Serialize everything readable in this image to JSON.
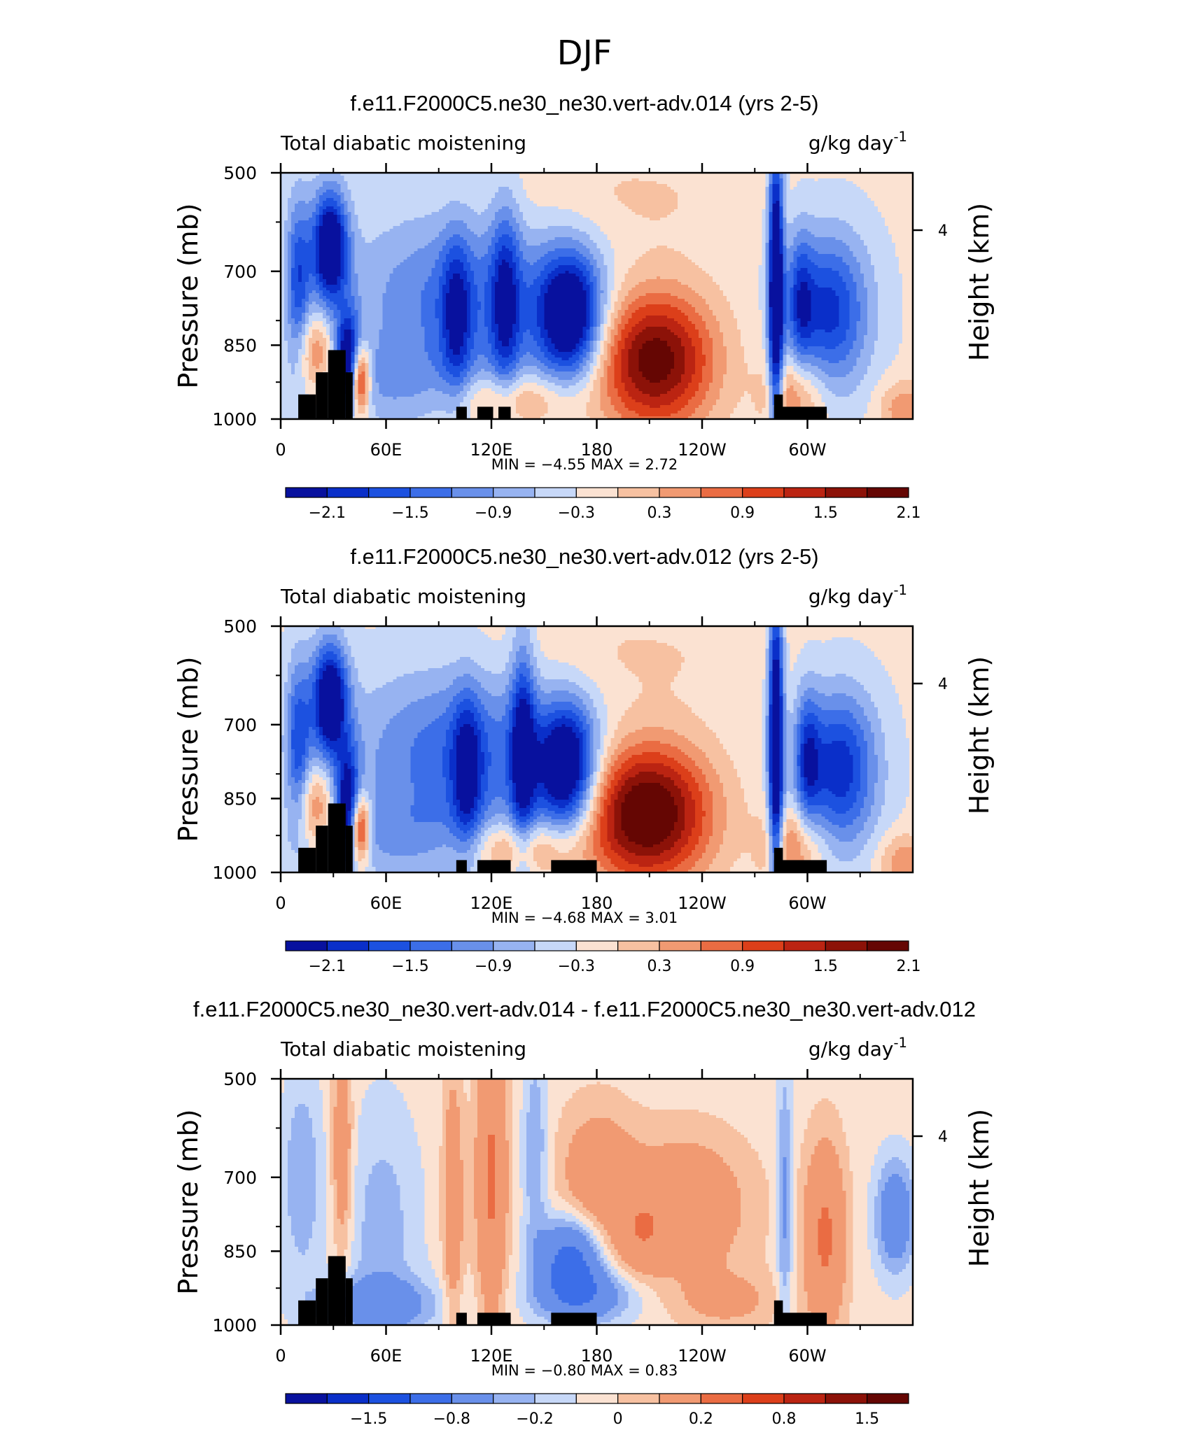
{
  "figure_title": "DJF",
  "chart_data": [
    {
      "type": "heatmap",
      "title": "f.e11.F2000C5.ne30_ne30.vert-adv.014 (yrs 2-5)",
      "left_subtitle": "Total diabatic moistening",
      "units": "g/kg day",
      "units_exponent": "-1",
      "ylabel": "Pressure (mb)",
      "right_ylabel": "Height (km)",
      "right_tick": "4",
      "yticks": [
        "500",
        "700",
        "850",
        "1000"
      ],
      "xticks": [
        "0",
        "60E",
        "120E",
        "180",
        "120W",
        "60W"
      ],
      "min_max": "MIN = −4.55 MAX = 2.72",
      "colorbar_labels": [
        "−2.1",
        "−1.5",
        "−0.9",
        "−0.3",
        "0.3",
        "0.9",
        "1.5",
        "2.1"
      ],
      "colorbar_colors": [
        "#08119e",
        "#0a2fc9",
        "#1c51e0",
        "#3c6ee8",
        "#6990ea",
        "#97b3f1",
        "#c7d8f8",
        "#fbe2d2",
        "#f7c1a1",
        "#f19a72",
        "#ea6c43",
        "#dc3f1a",
        "#bb2412",
        "#8c1208",
        "#650603"
      ],
      "field": {
        "xrange": [
          0,
          360
        ],
        "prange": [
          500,
          1000
        ],
        "vmin": -4.55,
        "vmax": 2.72,
        "blobs": [
          {
            "lon": 28,
            "p": 650,
            "slon": 7,
            "sp": 80,
            "amp": -2.6
          },
          {
            "lon": 10,
            "p": 720,
            "slon": 5,
            "sp": 120,
            "amp": -1.4
          },
          {
            "lon": 20,
            "p": 870,
            "slon": 8,
            "sp": 60,
            "amp": 1.1
          },
          {
            "lon": 38,
            "p": 880,
            "slon": 5,
            "sp": 70,
            "amp": -2.2
          },
          {
            "lon": 45,
            "p": 920,
            "slon": 4,
            "sp": 50,
            "amp": 2.3
          },
          {
            "lon": 105,
            "p": 760,
            "slon": 45,
            "sp": 130,
            "amp": -1.1
          },
          {
            "lon": 100,
            "p": 790,
            "slon": 6,
            "sp": 110,
            "amp": -1.2
          },
          {
            "lon": 128,
            "p": 760,
            "slon": 6,
            "sp": 140,
            "amp": -1.3
          },
          {
            "lon": 165,
            "p": 790,
            "slon": 13,
            "sp": 90,
            "amp": -2.5
          },
          {
            "lon": 130,
            "p": 960,
            "slon": 25,
            "sp": 40,
            "amp": 0.9
          },
          {
            "lon": 60,
            "p": 930,
            "slon": 40,
            "sp": 60,
            "amp": -0.5
          },
          {
            "lon": 213,
            "p": 880,
            "slon": 24,
            "sp": 100,
            "amp": 2.3
          },
          {
            "lon": 282,
            "p": 740,
            "slon": 3,
            "sp": 220,
            "amp": -2.8
          },
          {
            "lon": 312,
            "p": 780,
            "slon": 16,
            "sp": 110,
            "amp": -1.7
          },
          {
            "lon": 296,
            "p": 760,
            "slon": 5,
            "sp": 100,
            "amp": -1.0
          },
          {
            "lon": 292,
            "p": 950,
            "slon": 12,
            "sp": 60,
            "amp": 1.0
          },
          {
            "lon": 355,
            "p": 980,
            "slon": 10,
            "sp": 40,
            "amp": 0.8
          },
          {
            "lon": 190,
            "p": 550,
            "slon": 60,
            "sp": 80,
            "amp": 0.3
          }
        ]
      },
      "topography": [
        {
          "lon0": 10,
          "lon1": 20,
          "p": 950
        },
        {
          "lon0": 20,
          "lon1": 27,
          "p": 905
        },
        {
          "lon0": 27,
          "lon1": 37,
          "p": 860
        },
        {
          "lon0": 37,
          "lon1": 41,
          "p": 905
        },
        {
          "lon0": 100,
          "lon1": 106,
          "p": 975
        },
        {
          "lon0": 112,
          "lon1": 121,
          "p": 975
        },
        {
          "lon0": 124,
          "lon1": 131,
          "p": 975
        },
        {
          "lon0": 281,
          "lon1": 286,
          "p": 950
        },
        {
          "lon0": 281,
          "lon1": 311,
          "p": 975
        }
      ]
    },
    {
      "type": "heatmap",
      "title": "f.e11.F2000C5.ne30_ne30.vert-adv.012 (yrs 2-5)",
      "left_subtitle": "Total diabatic moistening",
      "units": "g/kg day",
      "units_exponent": "-1",
      "ylabel": "Pressure (mb)",
      "right_ylabel": "Height (km)",
      "right_tick": "4",
      "yticks": [
        "500",
        "700",
        "850",
        "1000"
      ],
      "xticks": [
        "0",
        "60E",
        "120E",
        "180",
        "120W",
        "60W"
      ],
      "min_max": "MIN = −4.68 MAX = 3.01",
      "colorbar_labels": [
        "−2.1",
        "−1.5",
        "−0.9",
        "−0.3",
        "0.3",
        "0.9",
        "1.5",
        "2.1"
      ],
      "colorbar_colors": [
        "#08119e",
        "#0a2fc9",
        "#1c51e0",
        "#3c6ee8",
        "#6990ea",
        "#97b3f1",
        "#c7d8f8",
        "#fbe2d2",
        "#f7c1a1",
        "#f19a72",
        "#ea6c43",
        "#dc3f1a",
        "#bb2412",
        "#8c1208",
        "#650603"
      ],
      "field": {
        "xrange": [
          0,
          360
        ],
        "prange": [
          500,
          1000
        ],
        "vmin": -4.68,
        "vmax": 3.01,
        "blobs": [
          {
            "lon": 28,
            "p": 650,
            "slon": 7,
            "sp": 80,
            "amp": -2.6
          },
          {
            "lon": 10,
            "p": 740,
            "slon": 5,
            "sp": 120,
            "amp": -1.4
          },
          {
            "lon": 20,
            "p": 870,
            "slon": 8,
            "sp": 60,
            "amp": 1.1
          },
          {
            "lon": 38,
            "p": 860,
            "slon": 5,
            "sp": 80,
            "amp": -2.0
          },
          {
            "lon": 45,
            "p": 910,
            "slon": 4,
            "sp": 50,
            "amp": 2.3
          },
          {
            "lon": 105,
            "p": 760,
            "slon": 45,
            "sp": 130,
            "amp": -1.2
          },
          {
            "lon": 106,
            "p": 800,
            "slon": 6,
            "sp": 110,
            "amp": -1.3
          },
          {
            "lon": 138,
            "p": 750,
            "slon": 5,
            "sp": 160,
            "amp": -1.6
          },
          {
            "lon": 163,
            "p": 790,
            "slon": 12,
            "sp": 90,
            "amp": -2.5
          },
          {
            "lon": 135,
            "p": 950,
            "slon": 22,
            "sp": 40,
            "amp": 1.0
          },
          {
            "lon": 60,
            "p": 930,
            "slon": 40,
            "sp": 60,
            "amp": -0.5
          },
          {
            "lon": 208,
            "p": 880,
            "slon": 26,
            "sp": 100,
            "amp": 2.6
          },
          {
            "lon": 282,
            "p": 740,
            "slon": 3,
            "sp": 220,
            "amp": -2.8
          },
          {
            "lon": 318,
            "p": 790,
            "slon": 15,
            "sp": 110,
            "amp": -1.8
          },
          {
            "lon": 300,
            "p": 770,
            "slon": 5,
            "sp": 100,
            "amp": -1.2
          },
          {
            "lon": 292,
            "p": 950,
            "slon": 12,
            "sp": 60,
            "amp": 1.0
          },
          {
            "lon": 355,
            "p": 980,
            "slon": 10,
            "sp": 40,
            "amp": 0.8
          },
          {
            "lon": 185,
            "p": 560,
            "slon": 70,
            "sp": 80,
            "amp": 0.3
          }
        ]
      },
      "topography": [
        {
          "lon0": 10,
          "lon1": 20,
          "p": 950
        },
        {
          "lon0": 20,
          "lon1": 27,
          "p": 905
        },
        {
          "lon0": 27,
          "lon1": 37,
          "p": 860
        },
        {
          "lon0": 37,
          "lon1": 41,
          "p": 905
        },
        {
          "lon0": 100,
          "lon1": 106,
          "p": 975
        },
        {
          "lon0": 112,
          "lon1": 131,
          "p": 975
        },
        {
          "lon0": 154,
          "lon1": 180,
          "p": 975
        },
        {
          "lon0": 281,
          "lon1": 286,
          "p": 950
        },
        {
          "lon0": 281,
          "lon1": 311,
          "p": 975
        }
      ]
    },
    {
      "type": "heatmap",
      "title": "f.e11.F2000C5.ne30_ne30.vert-adv.014 - f.e11.F2000C5.ne30_ne30.vert-adv.012",
      "left_subtitle": "Total diabatic moistening",
      "units": "g/kg day",
      "units_exponent": "-1",
      "ylabel": "Pressure (mb)",
      "right_ylabel": "Height (km)",
      "right_tick": "4",
      "yticks": [
        "500",
        "700",
        "850",
        "1000"
      ],
      "xticks": [
        "0",
        "60E",
        "120E",
        "180",
        "120W",
        "60W"
      ],
      "min_max": "MIN = −0.80 MAX = 0.83",
      "colorbar_labels": [
        "−1.5",
        "−0.8",
        "−0.2",
        "0",
        "0.2",
        "0.8",
        "1.5"
      ],
      "colorbar_colors": [
        "#08119e",
        "#0a2fc9",
        "#1c51e0",
        "#3c6ee8",
        "#6990ea",
        "#97b3f1",
        "#c7d8f8",
        "#fbe2d2",
        "#f7c1a1",
        "#f19a72",
        "#ea6c43",
        "#dc3f1a",
        "#bb2412",
        "#8c1208",
        "#650603"
      ],
      "field": {
        "xrange": [
          0,
          360
        ],
        "prange": [
          500,
          1000
        ],
        "vmin": -0.8,
        "vmax": 0.83,
        "blobs": [
          {
            "lon": 12,
            "p": 700,
            "slon": 8,
            "sp": 150,
            "amp": -0.25
          },
          {
            "lon": 35,
            "p": 650,
            "slon": 4,
            "sp": 150,
            "amp": 0.35
          },
          {
            "lon": 58,
            "p": 800,
            "slon": 15,
            "sp": 180,
            "amp": -0.2
          },
          {
            "lon": 98,
            "p": 750,
            "slon": 4,
            "sp": 180,
            "amp": 0.35
          },
          {
            "lon": 120,
            "p": 700,
            "slon": 6,
            "sp": 200,
            "amp": 0.5
          },
          {
            "lon": 145,
            "p": 650,
            "slon": 5,
            "sp": 150,
            "amp": -0.25
          },
          {
            "lon": 165,
            "p": 870,
            "slon": 12,
            "sp": 60,
            "amp": -0.7
          },
          {
            "lon": 180,
            "p": 700,
            "slon": 15,
            "sp": 100,
            "amp": 0.3
          },
          {
            "lon": 230,
            "p": 760,
            "slon": 25,
            "sp": 100,
            "amp": 0.35
          },
          {
            "lon": 205,
            "p": 820,
            "slon": 10,
            "sp": 60,
            "amp": 0.25
          },
          {
            "lon": 310,
            "p": 820,
            "slon": 8,
            "sp": 130,
            "amp": 0.5
          },
          {
            "lon": 350,
            "p": 780,
            "slon": 8,
            "sp": 80,
            "amp": -0.45
          },
          {
            "lon": 287,
            "p": 750,
            "slon": 3,
            "sp": 200,
            "amp": -0.3
          },
          {
            "lon": 55,
            "p": 960,
            "slon": 25,
            "sp": 40,
            "amp": -0.35
          },
          {
            "lon": 175,
            "p": 940,
            "slon": 20,
            "sp": 40,
            "amp": -0.4
          },
          {
            "lon": 255,
            "p": 950,
            "slon": 20,
            "sp": 40,
            "amp": 0.2
          }
        ]
      },
      "topography": [
        {
          "lon0": 10,
          "lon1": 20,
          "p": 950
        },
        {
          "lon0": 20,
          "lon1": 27,
          "p": 905
        },
        {
          "lon0": 27,
          "lon1": 37,
          "p": 860
        },
        {
          "lon0": 37,
          "lon1": 41,
          "p": 905
        },
        {
          "lon0": 100,
          "lon1": 106,
          "p": 975
        },
        {
          "lon0": 112,
          "lon1": 131,
          "p": 975
        },
        {
          "lon0": 154,
          "lon1": 180,
          "p": 975
        },
        {
          "lon0": 281,
          "lon1": 286,
          "p": 950
        },
        {
          "lon0": 281,
          "lon1": 311,
          "p": 975
        }
      ]
    }
  ]
}
